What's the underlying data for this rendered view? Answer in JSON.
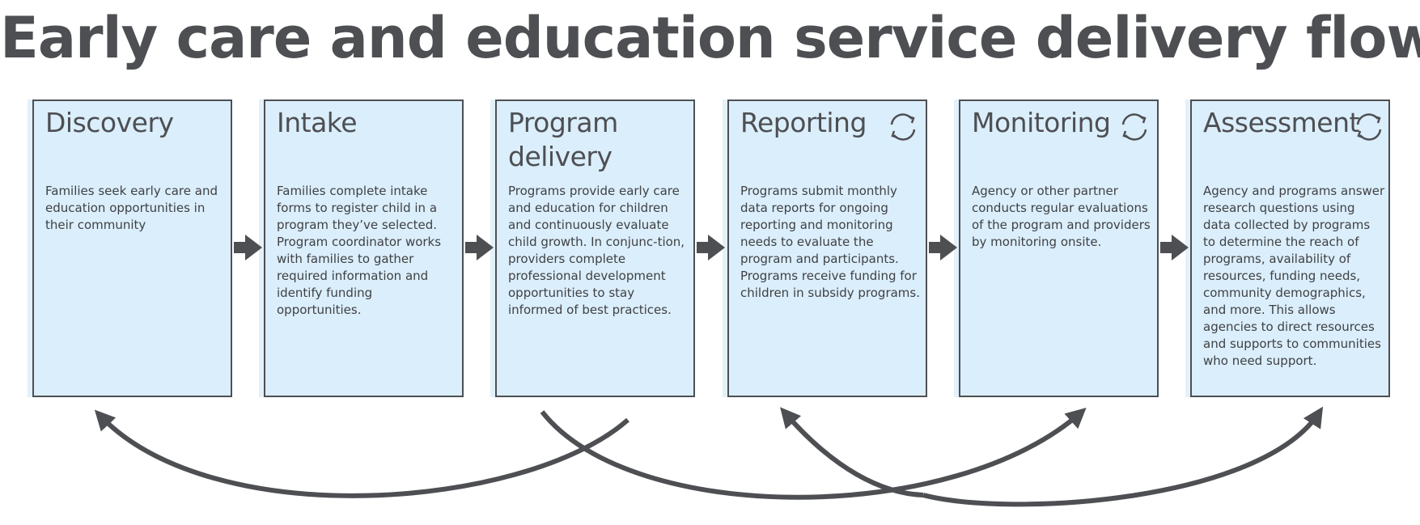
{
  "title": "Early care and education service delivery flow",
  "stages": [
    {
      "title": "Discovery",
      "description": "Families seek early care and education opportunities in their community",
      "icon": null
    },
    {
      "title": "Intake",
      "description": "Families complete intake forms to register child in a program they’ve selected. Program  coordinator works with families to gather required information and identify funding opportunities.",
      "icon": null
    },
    {
      "title": "Program delivery",
      "description": "Programs provide early care and education for children and continuously evaluate child growth. In conjunc-tion, providers complete professional development opportunities to stay informed of best practices.",
      "icon": null
    },
    {
      "title": "Reporting",
      "description": "Programs submit monthly data reports for ongoing reporting and monitoring needs to evaluate the program and participants. Programs receive funding for children in subsidy programs.",
      "icon": "cycle-icon"
    },
    {
      "title": "Monitoring",
      "description": "Agency or other partner conducts regular evaluations of the program and providers by monitoring onsite.",
      "icon": "cycle-icon"
    },
    {
      "title": "Assessment",
      "description": "Agency and programs answer research questions using data collected by programs to determine the reach of programs, availability of resources, funding needs, community demographics, and more. This allows agencies to direct resources and supports to communities who need support.",
      "icon": "cycle-icon"
    }
  ],
  "connectors": [
    {
      "from": "Discovery",
      "to": "Intake",
      "type": "forward-arrow"
    },
    {
      "from": "Intake",
      "to": "Program delivery",
      "type": "forward-arrow"
    },
    {
      "from": "Program delivery",
      "to": "Reporting",
      "type": "forward-arrow"
    },
    {
      "from": "Reporting",
      "to": "Monitoring",
      "type": "forward-arrow"
    },
    {
      "from": "Monitoring",
      "to": "Assessment",
      "type": "forward-arrow"
    },
    {
      "from": "Program delivery",
      "to": "Discovery",
      "type": "curved-feedback-arrow"
    },
    {
      "from": "Program delivery",
      "to": "Monitoring",
      "type": "curved-feedback-arrow"
    },
    {
      "from": "Assessment",
      "to": "Reporting",
      "type": "curved-feedback-arrow"
    },
    {
      "from": "Reporting",
      "to": "Assessment",
      "type": "curved-feedback-arrow"
    }
  ],
  "colors": {
    "box_fill": "#dbeefb",
    "stroke": "#4d4f53",
    "text": "#4d4f53"
  }
}
